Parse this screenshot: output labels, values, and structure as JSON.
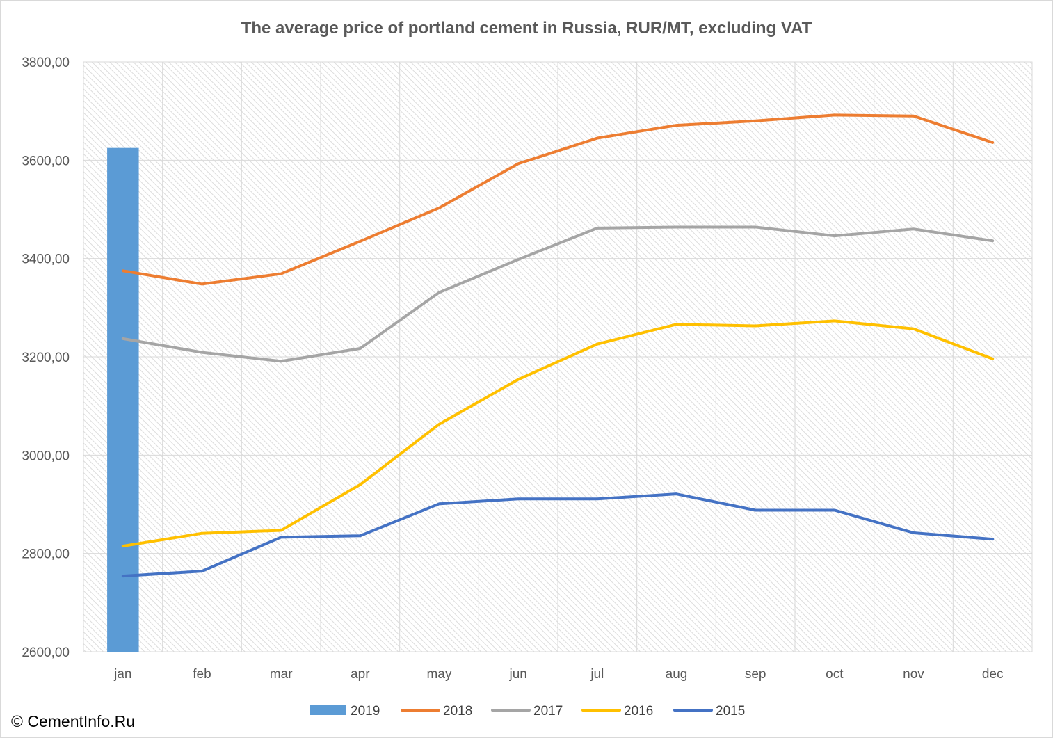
{
  "chart_data": {
    "type": "bar+line",
    "title": "The average price of portland cement in Russia, RUR/MT,  excluding VAT",
    "categories": [
      "jan",
      "feb",
      "mar",
      "apr",
      "may",
      "jun",
      "jul",
      "aug",
      "sep",
      "oct",
      "nov",
      "dec"
    ],
    "ylim": [
      2600,
      3800
    ],
    "yticks": [
      2600,
      2800,
      3000,
      3200,
      3400,
      3600,
      3800
    ],
    "ytick_labels": [
      "2600,00",
      "2800,00",
      "3000,00",
      "3200,00",
      "3400,00",
      "3600,00",
      "3800,00"
    ],
    "grid": true,
    "legend_position": "bottom",
    "series": [
      {
        "name": "2019",
        "kind": "bar",
        "color": "#5b9bd5",
        "values": [
          3625,
          null,
          null,
          null,
          null,
          null,
          null,
          null,
          null,
          null,
          null,
          null
        ]
      },
      {
        "name": "2018",
        "kind": "line",
        "color": "#ed7d31",
        "values": [
          3375,
          3348,
          3369,
          3435,
          3503,
          3593,
          3645,
          3671,
          3680,
          3692,
          3690,
          3636
        ]
      },
      {
        "name": "2017",
        "kind": "line",
        "color": "#a5a5a5",
        "values": [
          3237,
          3209,
          3191,
          3217,
          3331,
          3398,
          3462,
          3464,
          3464,
          3446,
          3460,
          3436
        ]
      },
      {
        "name": "2016",
        "kind": "line",
        "color": "#ffc000",
        "values": [
          2815,
          2841,
          2847,
          2940,
          3063,
          3154,
          3226,
          3266,
          3263,
          3273,
          3257,
          3196
        ]
      },
      {
        "name": "2015",
        "kind": "line",
        "color": "#4472c4",
        "values": [
          2754,
          2764,
          2833,
          2836,
          2901,
          2911,
          2911,
          2921,
          2888,
          2888,
          2842,
          2829
        ]
      }
    ]
  },
  "footer": {
    "copyright": "© CementInfo.Ru"
  }
}
